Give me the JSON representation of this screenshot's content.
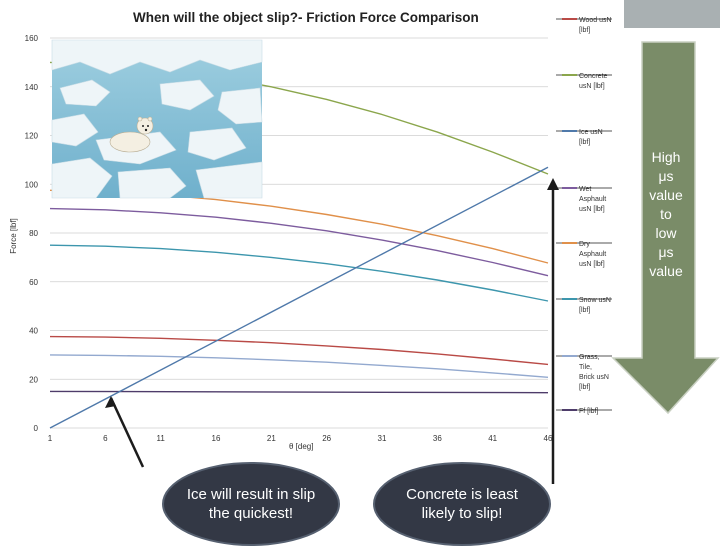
{
  "colors": {
    "wood": "#b94a46",
    "concrete": "#8ba64c",
    "ice": "#4f79aa",
    "wet_asphalt": "#7d5c9e",
    "dry_asphalt": "#e0904a",
    "snow": "#3d96ad",
    "grass": "#93a9cf",
    "ff": "#4e3c6a",
    "arrow": "#7a8c68",
    "bubble": "#333845"
  },
  "chart_data": {
    "type": "line",
    "title": "When will the object slip?- Friction Force Comparison",
    "xlabel": "θ [deg]",
    "ylabel": "Force [lbf]",
    "ylim": [
      0,
      160
    ],
    "xlim": [
      1,
      46
    ],
    "x_ticks": [
      "1",
      "6",
      "11",
      "16",
      "21",
      "26",
      "31",
      "36",
      "41",
      "46"
    ],
    "y_ticks": [
      "0",
      "20",
      "40",
      "60",
      "80",
      "100",
      "120",
      "140",
      "160"
    ],
    "grid": "horizontal",
    "legend": "right",
    "x": [
      1,
      6,
      11,
      16,
      21,
      26,
      31,
      36,
      41,
      46
    ],
    "series": [
      {
        "name": "Wood usN [lbf]",
        "color_key": "wood",
        "values": [
          37.5,
          37.3,
          36.8,
          36.0,
          35.0,
          33.7,
          32.2,
          30.4,
          28.3,
          26.1
        ]
      },
      {
        "name": "Concrete usN [lbf]",
        "color_key": "concrete",
        "values": [
          150.0,
          149.2,
          147.2,
          144.2,
          140.0,
          134.8,
          128.6,
          121.4,
          113.2,
          104.2
        ]
      },
      {
        "name": "Ice usN [lbf]",
        "color_key": "ice",
        "values": null
      },
      {
        "name": "Wet Asphault usN [lbf]",
        "color_key": "wet_asphalt",
        "values": [
          90.0,
          89.5,
          88.3,
          86.5,
          84.0,
          80.9,
          77.1,
          72.8,
          67.9,
          62.5
        ]
      },
      {
        "name": "Dry Asphault usN [lbf]",
        "color_key": "dry_asphalt",
        "values": [
          97.5,
          97.0,
          95.7,
          93.7,
          91.0,
          87.6,
          83.6,
          78.9,
          73.6,
          67.7
        ]
      },
      {
        "name": "Snow usN [lbf]",
        "color_key": "snow",
        "values": [
          75.0,
          74.6,
          73.6,
          72.1,
          70.0,
          67.4,
          64.3,
          60.7,
          56.6,
          52.1
        ]
      },
      {
        "name": "Grass, Tile, Brick usN [lbf]",
        "color_key": "grass",
        "values": [
          30.0,
          29.8,
          29.4,
          28.8,
          28.0,
          27.0,
          25.7,
          24.3,
          22.6,
          20.8
        ]
      },
      {
        "name": "Ff [lbf]",
        "color_key": "ff",
        "values": null
      }
    ],
    "ice_line": {
      "x": [
        1,
        46
      ],
      "y": [
        15.0,
        14.5
      ]
    },
    "ff_line": {
      "x": [
        1,
        46
      ],
      "y": [
        0.0,
        107.0
      ]
    }
  },
  "arrow_note": [
    "High",
    "μs",
    "value",
    "to",
    "low",
    "μs",
    "value"
  ],
  "callouts": {
    "ice": "Ice will result in slip the quickest!",
    "concrete": "Concrete is least likely to slip!"
  },
  "photo": {
    "icon": "polar-bear-on-ice-photo"
  }
}
